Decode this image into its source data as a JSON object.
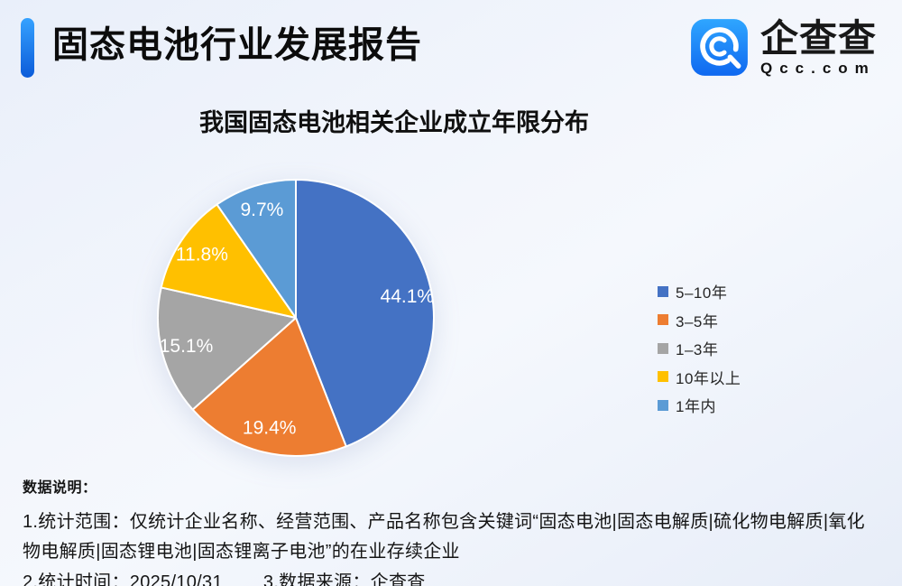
{
  "page": {
    "title": "固态电池行业发展报告",
    "brand": {
      "name": "企查查",
      "domain": "Qcc.com"
    }
  },
  "chart_data": {
    "type": "pie",
    "title": "我国固态电池相关企业成立年限分布",
    "start_angle_deg": 0,
    "direction": "clockwise",
    "legend_position": "right",
    "label_format": "{value}%",
    "slices": [
      {
        "label": "5–10年",
        "value": 44.1,
        "color": "#4472C4"
      },
      {
        "label": "3–5年",
        "value": 19.4,
        "color": "#ED7D31"
      },
      {
        "label": "1–3年",
        "value": 15.1,
        "color": "#A5A5A5"
      },
      {
        "label": "10年以上",
        "value": 11.8,
        "color": "#FFC000"
      },
      {
        "label": "1年内",
        "value": 9.7,
        "color": "#5B9BD5"
      }
    ]
  },
  "notes": {
    "heading": "数据说明：",
    "scope": "1.统计范围：仅统计企业名称、经营范围、产品名称包含关键词“固态电池|固态电解质|硫化物电解质|氧化物电解质|固态锂电池|固态锂离子电池”的在业存续企业",
    "time": "2.统计时间：2025/10/31",
    "source": "3.数据来源：企查查"
  },
  "theme": {
    "accent_top": "#35A2FF",
    "accent_bottom": "#0B5BD9",
    "logo_top": "#2FA6FF",
    "logo_bottom": "#0F68F0",
    "pie_label_color": "#FFFFFF"
  }
}
